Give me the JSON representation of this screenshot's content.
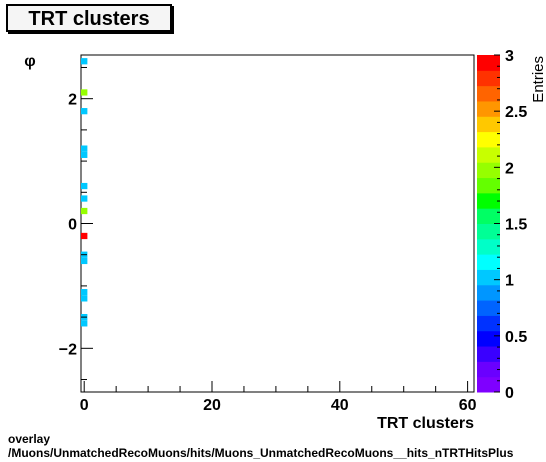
{
  "header": {
    "title": "TRT clusters"
  },
  "footer": {
    "line1": "overlay",
    "line2": "/Muons/UnmatchedRecoMuons/hits/Muons_UnmatchedRecoMuons__hits_nTRTHitsPlus"
  },
  "chart_data": {
    "type": "heatmap",
    "title": "TRT clusters",
    "xlabel": "TRT clusters",
    "ylabel": "φ",
    "zlabel": "Entries",
    "xlim": [
      -0.5,
      61
    ],
    "ylim": [
      -2.7,
      2.7
    ],
    "zlim": [
      0,
      3
    ],
    "x_ticks": [
      0,
      20,
      40,
      60
    ],
    "y_ticks": [
      -2,
      0,
      2
    ],
    "z_ticks": [
      0,
      0.5,
      1,
      1.5,
      2,
      2.5,
      3
    ],
    "x_tick_labels": [
      "0",
      "20",
      "40",
      "60"
    ],
    "y_tick_labels": [
      "−2",
      "0",
      "2"
    ],
    "z_tick_labels": [
      "0",
      "0.5",
      "1",
      "1.5",
      "2",
      "2.5",
      "3"
    ],
    "bin_height": 0.1,
    "cells": [
      {
        "x": 0,
        "y": 2.6,
        "z": 1
      },
      {
        "x": 0,
        "y": 2.1,
        "z": 2
      },
      {
        "x": 0,
        "y": 1.8,
        "z": 1
      },
      {
        "x": 0,
        "y": 1.2,
        "z": 1
      },
      {
        "x": 0,
        "y": 1.1,
        "z": 1
      },
      {
        "x": 0,
        "y": 0.6,
        "z": 1
      },
      {
        "x": 0,
        "y": 0.4,
        "z": 1
      },
      {
        "x": 0,
        "y": 0.2,
        "z": 2
      },
      {
        "x": 0,
        "y": -0.2,
        "z": 3
      },
      {
        "x": 0,
        "y": -0.5,
        "z": 1
      },
      {
        "x": 0,
        "y": -0.6,
        "z": 1
      },
      {
        "x": 0,
        "y": -1.1,
        "z": 1
      },
      {
        "x": 0,
        "y": -1.2,
        "z": 1
      },
      {
        "x": 0,
        "y": -1.5,
        "z": 1
      },
      {
        "x": 0,
        "y": -1.6,
        "z": 1
      }
    ],
    "colorbar_colors": [
      "#7f00ff",
      "#6a00ff",
      "#3a00ff",
      "#0000ff",
      "#0032ff",
      "#0064ff",
      "#0096ff",
      "#00c8ff",
      "#00ffff",
      "#00ffc8",
      "#00ff96",
      "#00ff64",
      "#00ff00",
      "#64ff00",
      "#96ff00",
      "#c8ff00",
      "#ffff00",
      "#ffc800",
      "#ff9600",
      "#ff6400",
      "#ff3200",
      "#ff0000"
    ]
  }
}
